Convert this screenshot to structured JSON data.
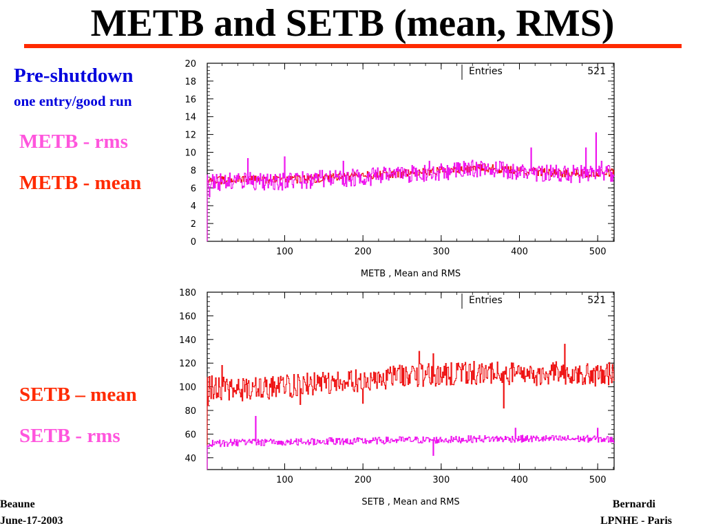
{
  "slide": {
    "title": "METB and SETB (mean, RMS)",
    "rule_color": "#ff2a00"
  },
  "labels": {
    "pre_shutdown": "Pre-shutdown",
    "one_entry": "one entry/good run",
    "metb_rms": "METB - rms",
    "metb_mean": "METB - mean",
    "setb_mean": "SETB – mean",
    "setb_rms": "SETB - rms"
  },
  "footer": {
    "left_line1": "Beaune",
    "left_line2": "June-17-2003",
    "right_line1": "Bernardi",
    "right_line2": "LPNHE - Paris"
  },
  "chart_data": [
    {
      "type": "line",
      "xlabel": "METB ,  Mean and RMS",
      "ylabel": "",
      "xlim": [
        1,
        521
      ],
      "ylim": [
        0,
        20
      ],
      "x_ticks": [
        100,
        200,
        300,
        400,
        500
      ],
      "y_ticks": [
        0,
        2,
        4,
        6,
        8,
        10,
        12,
        14,
        16,
        18,
        20
      ],
      "stats": {
        "label": "Entries",
        "value": "521"
      },
      "series": [
        {
          "color": "#ee1111",
          "shape": "step",
          "anchors": [
            [
              1,
              6.8
            ],
            [
              50,
              7.0
            ],
            [
              100,
              6.9
            ],
            [
              150,
              7.1
            ],
            [
              200,
              7.4
            ],
            [
              250,
              7.6
            ],
            [
              300,
              7.9
            ],
            [
              350,
              8.3
            ],
            [
              400,
              7.9
            ],
            [
              450,
              7.7
            ],
            [
              500,
              7.6
            ],
            [
              521,
              7.8
            ]
          ],
          "noise": 0.45,
          "spikes": []
        },
        {
          "color": "#ee11ee",
          "shape": "step",
          "anchors": [
            [
              1,
              6.6
            ],
            [
              50,
              6.8
            ],
            [
              100,
              6.7
            ],
            [
              150,
              7.0
            ],
            [
              200,
              7.2
            ],
            [
              250,
              7.5
            ],
            [
              300,
              7.8
            ],
            [
              350,
              8.2
            ],
            [
              400,
              7.8
            ],
            [
              450,
              7.6
            ],
            [
              500,
              7.5
            ],
            [
              521,
              7.6
            ]
          ],
          "noise": 1.0,
          "spikes": [
            [
              4,
              5.0
            ],
            [
              53,
              9.3
            ],
            [
              100,
              9.5
            ],
            [
              175,
              9.0
            ],
            [
              285,
              9.0
            ],
            [
              415,
              10.5
            ],
            [
              485,
              10.5
            ],
            [
              498,
              12.2
            ],
            [
              505,
              9.0
            ]
          ]
        }
      ]
    },
    {
      "type": "line",
      "xlabel": "SETB , Mean and RMS",
      "ylabel": "",
      "xlim": [
        1,
        521
      ],
      "ylim": [
        30,
        180
      ],
      "x_ticks": [
        100,
        200,
        300,
        400,
        500
      ],
      "y_ticks": [
        40,
        60,
        80,
        100,
        120,
        140,
        160,
        180
      ],
      "stats": {
        "label": "Entries",
        "value": "521"
      },
      "series": [
        {
          "color": "#ee1111",
          "shape": "step",
          "anchors": [
            [
              1,
              100
            ],
            [
              50,
              97
            ],
            [
              100,
              100
            ],
            [
              150,
              103
            ],
            [
              200,
              105
            ],
            [
              250,
              110
            ],
            [
              300,
              110
            ],
            [
              350,
              112
            ],
            [
              400,
              110
            ],
            [
              450,
              112
            ],
            [
              500,
              110
            ],
            [
              521,
              112
            ]
          ],
          "noise": 10,
          "spikes": [
            [
              2,
              84
            ],
            [
              20,
              118
            ],
            [
              120,
              85
            ],
            [
              200,
              86
            ],
            [
              272,
              130
            ],
            [
              290,
              128
            ],
            [
              380,
              82
            ],
            [
              458,
              136
            ]
          ]
        },
        {
          "color": "#ee11ee",
          "shape": "step",
          "anchors": [
            [
              1,
              52
            ],
            [
              50,
              53
            ],
            [
              100,
              53
            ],
            [
              150,
              54
            ],
            [
              200,
              54
            ],
            [
              250,
              55
            ],
            [
              300,
              55
            ],
            [
              350,
              56
            ],
            [
              400,
              56
            ],
            [
              450,
              56
            ],
            [
              500,
              56
            ],
            [
              521,
              55
            ]
          ],
          "noise": 3,
          "spikes": [
            [
              63,
              75
            ],
            [
              290,
              42
            ],
            [
              395,
              65
            ],
            [
              500,
              65
            ]
          ]
        }
      ]
    }
  ]
}
